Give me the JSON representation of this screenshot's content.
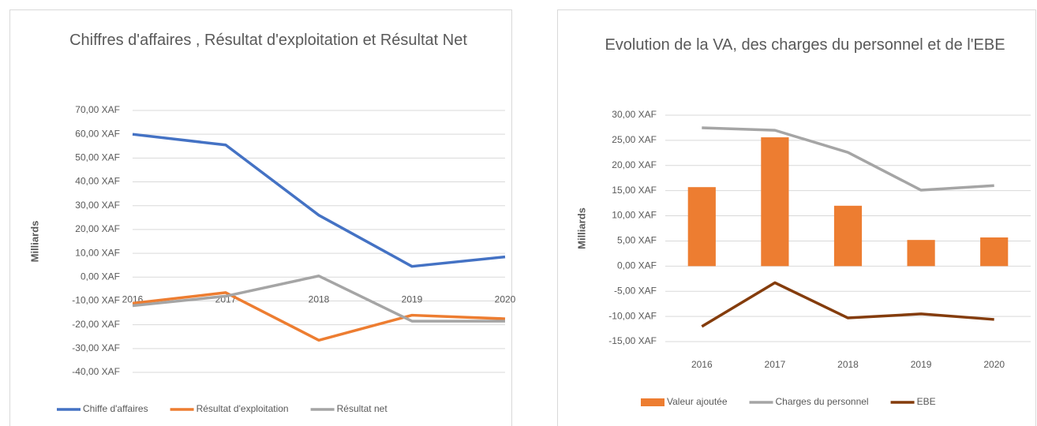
{
  "charts": [
    {
      "chart_data": {
        "type": "line",
        "title": "Chiffres d'affaires ,  Résultat d'exploitation et Résultat Net",
        "y_label": "Milliards",
        "categories": [
          "2016",
          "2017",
          "2018",
          "2019",
          "2020"
        ],
        "ylim": [
          -40,
          70
        ],
        "yticks": [
          {
            "value": -40,
            "label": "-40,00  XAF"
          },
          {
            "value": -30,
            "label": "-30,00  XAF"
          },
          {
            "value": -20,
            "label": "-20,00  XAF"
          },
          {
            "value": -10,
            "label": "-10,00  XAF"
          },
          {
            "value": 0,
            "label": "0,00  XAF"
          },
          {
            "value": 10,
            "label": "10,00  XAF"
          },
          {
            "value": 20,
            "label": "20,00  XAF"
          },
          {
            "value": 30,
            "label": "30,00  XAF"
          },
          {
            "value": 40,
            "label": "40,00  XAF"
          },
          {
            "value": 50,
            "label": "50,00  XAF"
          },
          {
            "value": 60,
            "label": "60,00  XAF"
          },
          {
            "value": 70,
            "label": "70,00  XAF"
          }
        ],
        "grid": true,
        "legend": "bottom",
        "series": [
          {
            "name": "Chiffe d'affaires",
            "color": "#4472c4",
            "type": "line",
            "values": [
              60,
              55.5,
              26,
              4.5,
              8.5
            ]
          },
          {
            "name": "Résultat d'exploitation",
            "color": "#ed7d31",
            "type": "line",
            "values": [
              -11,
              -6.5,
              -26.5,
              -16,
              -17.5
            ]
          },
          {
            "name": "Résultat net",
            "color": "#a5a5a5",
            "type": "line",
            "values": [
              -12,
              -8,
              0.5,
              -18.5,
              -18.5
            ]
          }
        ]
      }
    },
    {
      "chart_data": {
        "type": "combo",
        "title": "Evolution de la VA,  des charges du personnel et de l'EBE",
        "y_label": "Milliards",
        "categories": [
          "2016",
          "2017",
          "2018",
          "2019",
          "2020"
        ],
        "ylim": [
          -15,
          30
        ],
        "yticks": [
          {
            "value": -15,
            "label": "-15,00  XAF"
          },
          {
            "value": -10,
            "label": "-10,00  XAF"
          },
          {
            "value": -5,
            "label": "-5,00  XAF"
          },
          {
            "value": 0,
            "label": "0,00  XAF"
          },
          {
            "value": 5,
            "label": "5,00  XAF"
          },
          {
            "value": 10,
            "label": "10,00  XAF"
          },
          {
            "value": 15,
            "label": "15,00  XAF"
          },
          {
            "value": 20,
            "label": "20,00  XAF"
          },
          {
            "value": 25,
            "label": "25,00  XAF"
          },
          {
            "value": 30,
            "label": "30,00  XAF"
          }
        ],
        "grid": true,
        "legend": "bottom",
        "series": [
          {
            "name": "Valeur ajoutée",
            "color": "#ed7d31",
            "type": "bar",
            "values": [
              15.7,
              25.6,
              12,
              5.2,
              5.7
            ]
          },
          {
            "name": "Charges du personnel",
            "color": "#a5a5a5",
            "type": "line",
            "values": [
              27.5,
              27,
              22.6,
              15.1,
              16
            ]
          },
          {
            "name": "EBE",
            "color": "#843c0c",
            "type": "line",
            "values": [
              -12,
              -3.3,
              -10.3,
              -9.5,
              -10.6
            ]
          }
        ]
      }
    }
  ]
}
